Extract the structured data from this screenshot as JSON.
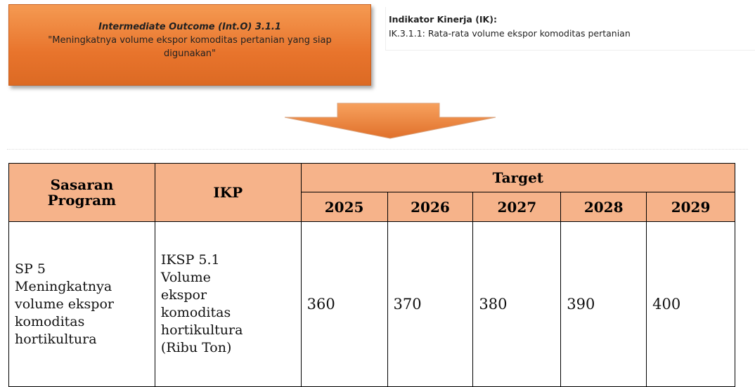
{
  "outcome": {
    "title": "Intermediate Outcome (Int.O) 3.1.1",
    "text": "\"Meningkatnya volume ekspor komoditas pertanian yang siap digunakan\""
  },
  "indicator": {
    "title": "Indikator Kinerja (IK):",
    "text": "IK.3.1.1: Rata-rata volume ekspor komoditas pertanian"
  },
  "table": {
    "headers": {
      "sasaran": [
        "Sasaran",
        "Program"
      ],
      "ikp": "IKP",
      "target": "Target",
      "years": [
        "2025",
        "2026",
        "2027",
        "2028",
        "2029"
      ]
    },
    "rows": [
      {
        "sasaran": [
          "SP 5",
          "Meningkatnya",
          "volume ekspor",
          "komoditas",
          "hortikultura"
        ],
        "ikp": [
          "IKSP 5.1",
          "Volume",
          "ekspor",
          "komoditas",
          "hortikultura",
          "(Ribu Ton)"
        ],
        "targets": [
          360,
          370,
          380,
          390,
          400
        ]
      }
    ]
  }
}
